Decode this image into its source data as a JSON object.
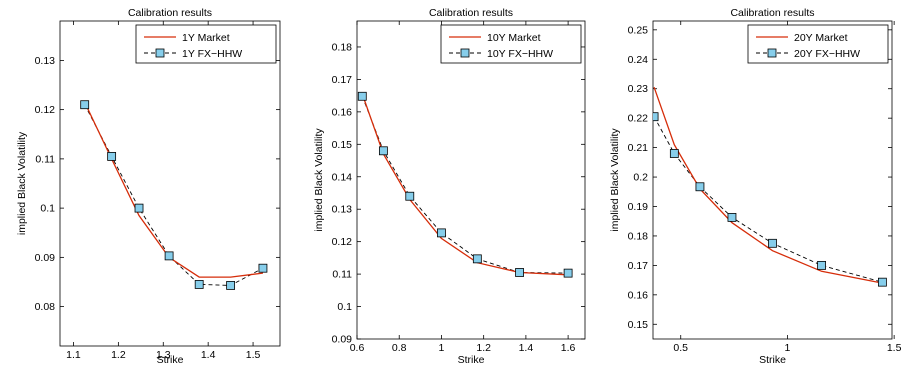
{
  "colors": {
    "market_line": "#d62d0a",
    "model_line": "#000000",
    "marker_fill": "#87ceeb",
    "axis": "#000000"
  },
  "chart_data": [
    {
      "type": "line",
      "title": "Calibration results",
      "xlabel": "Strike",
      "ylabel": "implied Black Volatility",
      "xlim": [
        1.07,
        1.56
      ],
      "ylim": [
        0.072,
        0.138
      ],
      "xticks": [
        1.1,
        1.2,
        1.3,
        1.4,
        1.5
      ],
      "xtick_labels": [
        "1.1",
        "1.2",
        "1.3",
        "1.4",
        "1.5"
      ],
      "yticks": [
        0.08,
        0.09,
        0.1,
        0.11,
        0.12,
        0.13
      ],
      "ytick_labels": [
        "0.08",
        "0.09",
        "0.1",
        "0.11",
        "0.12",
        "0.13"
      ],
      "legend_position": "top-right",
      "series": [
        {
          "name": "1Y Market",
          "style": "solid-red",
          "x": [
            1.125,
            1.185,
            1.246,
            1.313,
            1.38,
            1.45,
            1.522
          ],
          "y": [
            0.1215,
            0.11,
            0.0985,
            0.09,
            0.086,
            0.086,
            0.0868
          ]
        },
        {
          "name": "1Y FX−HHW",
          "style": "dashed-square",
          "x": [
            1.125,
            1.185,
            1.246,
            1.313,
            1.38,
            1.45,
            1.522
          ],
          "y": [
            0.121,
            0.1105,
            0.1,
            0.0903,
            0.0845,
            0.0843,
            0.0878
          ]
        }
      ]
    },
    {
      "type": "line",
      "title": "Calibration results",
      "xlabel": "Strike",
      "ylabel": "implied Black Volatility",
      "xlim": [
        0.6,
        1.68
      ],
      "ylim": [
        0.09,
        0.188
      ],
      "xticks": [
        0.6,
        0.8,
        1.0,
        1.2,
        1.4,
        1.6
      ],
      "xtick_labels": [
        "0.6",
        "0.8",
        "1",
        "1.2",
        "1.4",
        "1.6"
      ],
      "yticks": [
        0.09,
        0.1,
        0.11,
        0.12,
        0.13,
        0.14,
        0.15,
        0.16,
        0.17,
        0.18
      ],
      "ytick_labels": [
        "0.09",
        "0.1",
        "0.11",
        "0.12",
        "0.13",
        "0.14",
        "0.15",
        "0.16",
        "0.17",
        "0.18"
      ],
      "legend_position": "top-right",
      "series": [
        {
          "name": "10Y Market",
          "style": "solid-red",
          "x": [
            0.625,
            0.725,
            0.85,
            1.0,
            1.17,
            1.37,
            1.6
          ],
          "y": [
            0.1655,
            0.147,
            0.133,
            0.121,
            0.1135,
            0.1105,
            0.1098
          ]
        },
        {
          "name": "10Y FX−HHW",
          "style": "dashed-square",
          "x": [
            0.625,
            0.725,
            0.85,
            1.0,
            1.17,
            1.37,
            1.6
          ],
          "y": [
            0.1648,
            0.148,
            0.134,
            0.1227,
            0.1147,
            0.1105,
            0.1103
          ]
        }
      ]
    },
    {
      "type": "line",
      "title": "Calibration results",
      "xlabel": "Strike",
      "ylabel": "implied Black Volatility",
      "xlim": [
        0.37,
        1.49
      ],
      "ylim": [
        0.145,
        0.253
      ],
      "xticks": [
        0.5,
        1.0,
        1.5
      ],
      "xtick_labels": [
        "0.5",
        "1",
        "1.5"
      ],
      "yticks": [
        0.15,
        0.16,
        0.17,
        0.18,
        0.19,
        0.2,
        0.21,
        0.22,
        0.23,
        0.24,
        0.25
      ],
      "ytick_labels": [
        "0.15",
        "0.16",
        "0.17",
        "0.18",
        "0.19",
        "0.2",
        "0.21",
        "0.22",
        "0.23",
        "0.24",
        "0.25"
      ],
      "legend_position": "top-right",
      "series": [
        {
          "name": "20Y Market",
          "style": "solid-red",
          "x": [
            0.375,
            0.47,
            0.59,
            0.74,
            0.93,
            1.16,
            1.445
          ],
          "y": [
            0.2305,
            0.211,
            0.196,
            0.1845,
            0.175,
            0.168,
            0.164
          ]
        },
        {
          "name": "20Y FX−HHW",
          "style": "dashed-square",
          "x": [
            0.375,
            0.47,
            0.59,
            0.74,
            0.93,
            1.16,
            1.445
          ],
          "y": [
            0.2205,
            0.208,
            0.1967,
            0.1863,
            0.1775,
            0.17,
            0.1643
          ]
        }
      ]
    }
  ]
}
